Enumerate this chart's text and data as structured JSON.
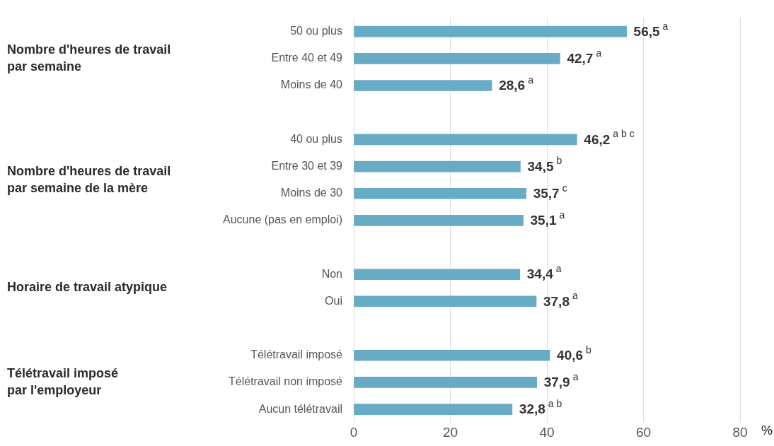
{
  "chart_data": {
    "type": "bar",
    "orientation": "horizontal",
    "categories": [
      "50 ou plus",
      "Entre 40 et 49",
      "Moins de 40",
      null,
      "40 ou plus",
      "Entre 30 et 39",
      "Moins de 30",
      "Aucune (pas en emploi)",
      null,
      "Non",
      "Oui",
      null,
      "Télétravail imposé",
      "Télétravail non imposé",
      "Aucun télétravail"
    ],
    "values": [
      56.5,
      42.7,
      28.6,
      null,
      46.2,
      34.5,
      35.7,
      35.1,
      null,
      34.4,
      37.8,
      null,
      40.6,
      37.9,
      32.8
    ],
    "value_labels": [
      "56,5$^{a}$",
      "42,7$^{a}$",
      "28,6$^{a}$",
      null,
      "46,2$^{a b c}$",
      "34,5$^{b}$",
      "35,7$^{c}$",
      "35,1$^{a}$",
      null,
      "34,4$^{a}$",
      "37,8$^{a}$",
      null,
      "40,6$^{b}$",
      "37,9$^{a}$",
      "32,8$^{a b}$"
    ],
    "color": "#68abc5",
    "xlim": [
      0,
      80
    ],
    "xticks": [
      0,
      20,
      40,
      60,
      80
    ],
    "xlabel": "%",
    "annotations": [
      "Nombre d'heures de travail\npar semaine",
      "Nombre d'heures de travail\npar semaine de la mère",
      "Horaire de travail atypique",
      "Télétravail imposé\npar l'employeur"
    ],
    "grid": "x",
    "legend": false
  }
}
